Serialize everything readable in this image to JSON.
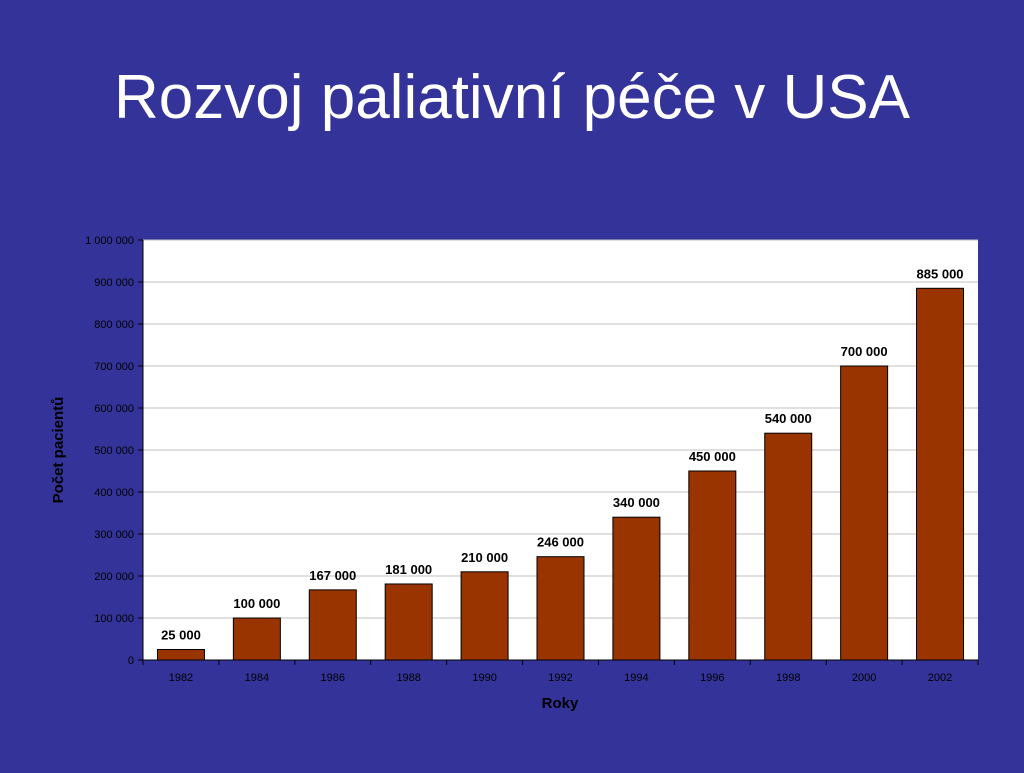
{
  "slide": {
    "title": "Rozvoj paliativní péče v USA"
  },
  "colors": {
    "background": "#333399",
    "bar_fill": "#993300",
    "plot_area": "#ffffff",
    "gridline": "#c0c0c0"
  },
  "chart_data": {
    "type": "bar",
    "title": "",
    "xlabel": "Roky",
    "ylabel": "Počet pacientů",
    "ylim": [
      0,
      1000000
    ],
    "grid": true,
    "legend": "none",
    "y_ticks": [
      {
        "value": 0,
        "label": "0"
      },
      {
        "value": 100000,
        "label": "100 000"
      },
      {
        "value": 200000,
        "label": "200 000"
      },
      {
        "value": 300000,
        "label": "300 000"
      },
      {
        "value": 400000,
        "label": "400 000"
      },
      {
        "value": 500000,
        "label": "500 000"
      },
      {
        "value": 600000,
        "label": "600 000"
      },
      {
        "value": 700000,
        "label": "700 000"
      },
      {
        "value": 800000,
        "label": "800 000"
      },
      {
        "value": 900000,
        "label": "900 000"
      },
      {
        "value": 1000000,
        "label": "1 000 000"
      }
    ],
    "categories": [
      "1982",
      "1984",
      "1986",
      "1988",
      "1990",
      "1992",
      "1994",
      "1996",
      "1998",
      "2000",
      "2002"
    ],
    "values": [
      25000,
      100000,
      167000,
      181000,
      210000,
      246000,
      340000,
      450000,
      540000,
      700000,
      885000
    ],
    "data_labels": [
      "25 000",
      "100 000",
      "167 000",
      "181 000",
      "210 000",
      "246 000",
      "340 000",
      "450 000",
      "540 000",
      "700 000",
      "885 000"
    ]
  }
}
